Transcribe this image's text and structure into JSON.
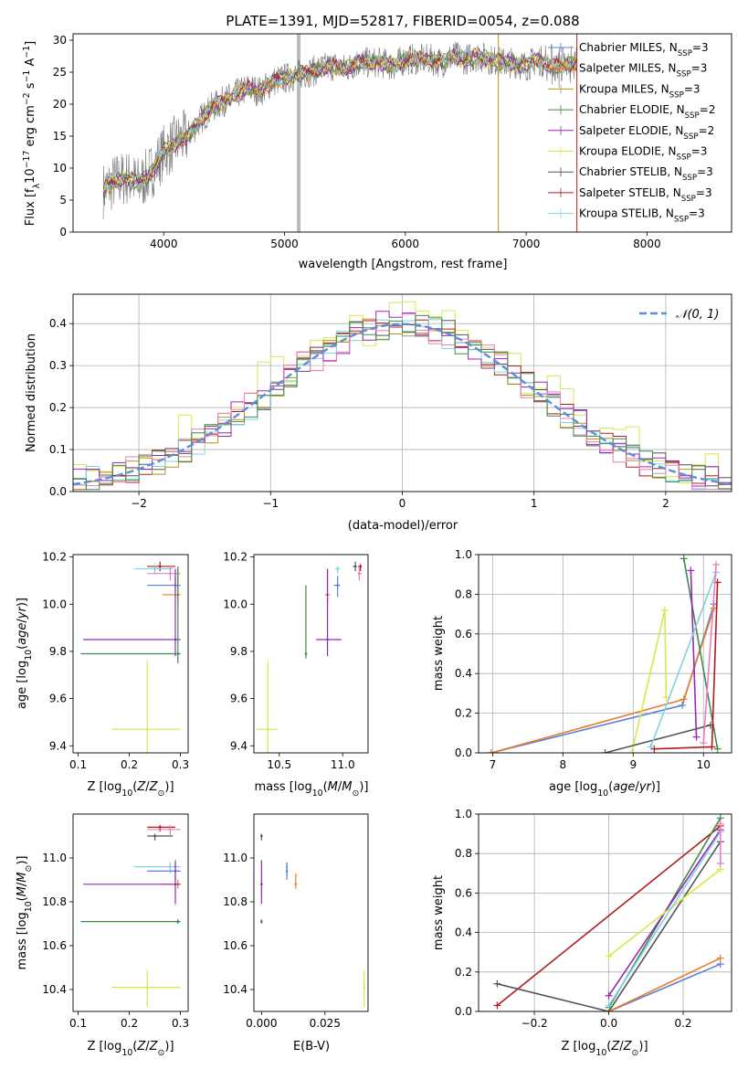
{
  "colors": {
    "chabrier_miles": "#5b7fd6",
    "salpeter_miles": "#e87d2b",
    "kroupa_miles": "#b8921e",
    "chabrier_elodie": "#3f8a4a",
    "salpeter_elodie": "#9b26b6",
    "kroupa_elodie": "#d7e849",
    "chabrier_stelib": "#555555",
    "salpeter_stelib": "#b31b1b",
    "kroupa_stelib": "#7fd3e0",
    "pink": "#e77fc0",
    "normal": "#5b8fd8"
  },
  "chart_data": [
    {
      "id": "spectrum",
      "type": "line",
      "title": "PLATE=1391, MJD=52817, FIBERID=0054, z=0.088",
      "xlabel": "wavelength [Angstrom, rest frame]",
      "ylabel": "Flux [fλ10⁻¹⁷ erg cm⁻² s⁻¹ A⁻¹]",
      "xlim": [
        3250,
        8700
      ],
      "ylim": [
        0,
        31
      ],
      "xticks": [
        4000,
        5000,
        6000,
        7000,
        8000
      ],
      "yticks": [
        0,
        5,
        10,
        15,
        20,
        25,
        30
      ],
      "x": [
        3500,
        3600,
        3700,
        3800,
        3900,
        4000,
        4100,
        4200,
        4300,
        4400,
        4500,
        4600,
        4700,
        4800,
        4900,
        5000,
        5100,
        5200,
        5300,
        5400,
        5500,
        5600,
        5700,
        5800,
        5900,
        6000,
        6100,
        6200,
        6300,
        6400,
        6500,
        6600,
        6700,
        6800,
        6900,
        7000,
        7100,
        7200,
        7300,
        7400
      ],
      "y": [
        6.5,
        8,
        8.5,
        7.5,
        9.5,
        12.5,
        14,
        15,
        17.5,
        19.5,
        20.5,
        21.5,
        22.5,
        22,
        23.5,
        24,
        24.5,
        25,
        25.5,
        26,
        25.5,
        26.5,
        26.5,
        26.5,
        26,
        27,
        27,
        27,
        26.5,
        27.5,
        27,
        27.5,
        27,
        26.5,
        26.5,
        26,
        27,
        26,
        26,
        26.5
      ],
      "legend": [
        {
          "label": "Chabrier MILES, N",
          "sub": "SSP",
          "suffix": "=3",
          "color_key": "chabrier_miles"
        },
        {
          "label": "Salpeter MILES, N",
          "sub": "SSP",
          "suffix": "=3",
          "color_key": "salpeter_miles"
        },
        {
          "label": "Kroupa MILES, N",
          "sub": "SSP",
          "suffix": "=3",
          "color_key": "kroupa_miles"
        },
        {
          "label": "Chabrier ELODIE, N",
          "sub": "SSP",
          "suffix": "=2",
          "color_key": "chabrier_elodie"
        },
        {
          "label": "Salpeter ELODIE, N",
          "sub": "SSP",
          "suffix": "=2",
          "color_key": "salpeter_elodie"
        },
        {
          "label": "Kroupa ELODIE, N",
          "sub": "SSP",
          "suffix": "=3",
          "color_key": "kroupa_elodie"
        },
        {
          "label": "Chabrier STELIB, N",
          "sub": "SSP",
          "suffix": "=3",
          "color_key": "chabrier_stelib"
        },
        {
          "label": "Salpeter STELIB, N",
          "sub": "SSP",
          "suffix": "=3",
          "color_key": "salpeter_stelib"
        },
        {
          "label": "Kroupa STELIB, N",
          "sub": "SSP",
          "suffix": "=3",
          "color_key": "kroupa_stelib"
        }
      ],
      "legend_position": "top-right"
    },
    {
      "id": "residuals",
      "type": "area",
      "xlabel": "(data-model)/error",
      "ylabel": "Normed distribution",
      "xlim": [
        -2.5,
        2.5
      ],
      "ylim": [
        0,
        0.47
      ],
      "xticks": [
        -2,
        -1,
        0,
        1,
        2
      ],
      "yticks": [
        0.0,
        0.1,
        0.2,
        0.3,
        0.4
      ],
      "grid": true,
      "bins": [
        -2.5,
        -2.4,
        -2.3,
        -2.2,
        -2.1,
        -2.0,
        -1.9,
        -1.8,
        -1.7,
        -1.6,
        -1.5,
        -1.4,
        -1.3,
        -1.2,
        -1.1,
        -1.0,
        -0.9,
        -0.8,
        -0.7,
        -0.6,
        -0.5,
        -0.4,
        -0.3,
        -0.2,
        -0.1,
        0.0,
        0.1,
        0.2,
        0.3,
        0.4,
        0.5,
        0.6,
        0.7,
        0.8,
        0.9,
        1.0,
        1.1,
        1.2,
        1.3,
        1.4,
        1.5,
        1.6,
        1.7,
        1.8,
        1.9,
        2.0,
        2.1,
        2.2,
        2.3,
        2.4
      ],
      "normal_label": "𝒩(0, 1)",
      "legend_position": "top-right"
    },
    {
      "id": "age_vs_Z",
      "type": "scatter",
      "xlabel": "Z [log10(Z/Z⊙)]",
      "ylabel": "age  [log10(age/yr)]",
      "xlim": [
        0.09,
        0.315
      ],
      "ylim": [
        9.37,
        10.21
      ],
      "xticks": [
        0.1,
        0.2,
        0.3
      ],
      "yticks": [
        9.4,
        9.6,
        9.8,
        10.0,
        10.2
      ],
      "points": [
        {
          "color_key": "salpeter_stelib",
          "x": 0.26,
          "y": 10.16,
          "xerr": [
            0.235,
            0.29
          ],
          "yerr": [
            10.14,
            10.18
          ]
        },
        {
          "color_key": "kroupa_stelib",
          "x": 0.25,
          "y": 10.15,
          "xerr": [
            0.21,
            0.285
          ],
          "yerr": [
            10.13,
            10.17
          ]
        },
        {
          "color_key": "pink",
          "x": 0.28,
          "y": 10.13,
          "xerr": [
            0.235,
            0.3
          ],
          "yerr": [
            10.1,
            10.16
          ]
        },
        {
          "color_key": "chabrier_miles",
          "x": 0.29,
          "y": 10.08,
          "xerr": [
            0.235,
            0.3
          ],
          "yerr": [
            10.03,
            10.12
          ]
        },
        {
          "color_key": "salpeter_miles",
          "x": 0.295,
          "y": 10.04,
          "xerr": [
            0.265,
            0.3
          ],
          "yerr": [
            10.0,
            10.15
          ]
        },
        {
          "color_key": "salpeter_elodie",
          "x": 0.29,
          "y": 9.85,
          "xerr": [
            0.11,
            0.3
          ],
          "yerr": [
            9.78,
            10.15
          ]
        },
        {
          "color_key": "chabrier_elodie",
          "x": 0.295,
          "y": 9.79,
          "xerr": [
            0.105,
            0.3
          ],
          "yerr": [
            9.75,
            10.16
          ]
        },
        {
          "color_key": "kroupa_elodie",
          "x": 0.235,
          "y": 9.47,
          "xerr": [
            0.165,
            0.3
          ],
          "yerr": [
            9.37,
            9.76
          ]
        }
      ]
    },
    {
      "id": "age_vs_mass",
      "type": "scatter",
      "xlabel": "mass [log10(M/M⊙)]",
      "ylabel": "",
      "xlim": [
        10.3,
        11.2
      ],
      "ylim": [
        9.37,
        10.21
      ],
      "xticks": [
        10.5,
        11.0
      ],
      "yticks": [
        9.4,
        9.6,
        9.8,
        10.0,
        10.2
      ],
      "points": [
        {
          "color_key": "salpeter_stelib",
          "x": 11.14,
          "y": 10.16,
          "xerr": [
            11.12,
            11.15
          ],
          "yerr": [
            10.14,
            10.17
          ]
        },
        {
          "color_key": "chabrier_stelib",
          "x": 11.1,
          "y": 10.16,
          "xerr": [
            11.08,
            11.11
          ],
          "yerr": [
            10.14,
            10.18
          ]
        },
        {
          "color_key": "pink",
          "x": 11.13,
          "y": 10.13,
          "xerr": [
            11.12,
            11.15
          ],
          "yerr": [
            10.1,
            10.16
          ]
        },
        {
          "color_key": "kroupa_stelib",
          "x": 10.96,
          "y": 10.15,
          "xerr": [
            10.94,
            10.98
          ],
          "yerr": [
            10.13,
            10.16
          ]
        },
        {
          "color_key": "chabrier_miles",
          "x": 10.96,
          "y": 10.08,
          "xerr": [
            10.93,
            10.98
          ],
          "yerr": [
            10.03,
            10.12
          ]
        },
        {
          "color_key": "salpeter_miles",
          "x": 10.88,
          "y": 10.04,
          "xerr": [
            10.86,
            10.9
          ],
          "yerr": [
            10.0,
            10.15
          ]
        },
        {
          "color_key": "salpeter_elodie",
          "x": 10.88,
          "y": 9.85,
          "xerr": [
            10.79,
            10.99
          ],
          "yerr": [
            9.78,
            10.15
          ]
        },
        {
          "color_key": "chabrier_elodie",
          "x": 10.71,
          "y": 9.79,
          "xerr": [
            10.7,
            10.72
          ],
          "yerr": [
            9.77,
            10.08
          ]
        },
        {
          "color_key": "kroupa_elodie",
          "x": 10.41,
          "y": 9.47,
          "xerr": [
            10.32,
            10.49
          ],
          "yerr": [
            9.37,
            9.76
          ]
        }
      ]
    },
    {
      "id": "mass_weight_vs_age",
      "type": "line",
      "xlabel": "age  [log10(age/yr)]",
      "ylabel": "mass weight",
      "xlim": [
        6.8,
        10.4
      ],
      "ylim": [
        0,
        1.0
      ],
      "xticks": [
        7,
        8,
        9,
        10
      ],
      "yticks": [
        0.0,
        0.2,
        0.4,
        0.6,
        0.8,
        1.0
      ],
      "grid": true,
      "series": [
        {
          "color_key": "chabrier_miles",
          "x": [
            6.98,
            9.7,
            10.15
          ],
          "y": [
            0.0,
            0.24,
            0.75
          ]
        },
        {
          "color_key": "salpeter_miles",
          "x": [
            6.98,
            9.72,
            10.15
          ],
          "y": [
            0.0,
            0.27,
            0.73
          ]
        },
        {
          "color_key": "chabrier_elodie",
          "x": [
            9.72,
            10.2
          ],
          "y": [
            0.98,
            0.02
          ]
        },
        {
          "color_key": "salpeter_elodie",
          "x": [
            9.82,
            9.9
          ],
          "y": [
            0.92,
            0.08
          ]
        },
        {
          "color_key": "kroupa_elodie",
          "x": [
            8.98,
            9.45,
            9.47
          ],
          "y": [
            0.0,
            0.72,
            0.28
          ]
        },
        {
          "color_key": "chabrier_stelib",
          "x": [
            8.6,
            10.1
          ],
          "y": [
            0.0,
            0.14
          ]
        },
        {
          "color_key": "salpeter_stelib",
          "x": [
            9.3,
            10.12,
            10.2
          ],
          "y": [
            0.02,
            0.03,
            0.86
          ]
        },
        {
          "color_key": "kroupa_stelib",
          "x": [
            9.25,
            10.18
          ],
          "y": [
            0.03,
            0.91
          ]
        },
        {
          "color_key": "pink",
          "x": [
            10.0,
            10.18
          ],
          "y": [
            0.05,
            0.95
          ]
        }
      ]
    },
    {
      "id": "mass_vs_Z",
      "type": "scatter",
      "xlabel": "Z [log10(Z/Z⊙)]",
      "ylabel": "mass [log10(M/M⊙)]",
      "xlim": [
        0.09,
        0.315
      ],
      "ylim": [
        10.3,
        11.2
      ],
      "xticks": [
        0.1,
        0.2,
        0.3
      ],
      "yticks": [
        10.4,
        10.6,
        10.8,
        11.0
      ],
      "points": [
        {
          "color_key": "salpeter_stelib",
          "x": 0.26,
          "y": 11.14,
          "xerr": [
            0.235,
            0.29
          ],
          "yerr": [
            11.12,
            11.15
          ]
        },
        {
          "color_key": "chabrier_stelib",
          "x": 0.25,
          "y": 11.1,
          "xerr": [
            0.235,
            0.285
          ],
          "yerr": [
            11.08,
            11.11
          ]
        },
        {
          "color_key": "pink",
          "x": 0.28,
          "y": 11.13,
          "xerr": [
            0.235,
            0.3
          ],
          "yerr": [
            11.1,
            11.15
          ]
        },
        {
          "color_key": "kroupa_stelib",
          "x": 0.28,
          "y": 10.96,
          "xerr": [
            0.21,
            0.3
          ],
          "yerr": [
            10.93,
            10.98
          ]
        },
        {
          "color_key": "chabrier_miles",
          "x": 0.29,
          "y": 10.94,
          "xerr": [
            0.235,
            0.3
          ],
          "yerr": [
            10.9,
            10.98
          ]
        },
        {
          "color_key": "salpeter_miles",
          "x": 0.295,
          "y": 10.88,
          "xerr": [
            0.265,
            0.3
          ],
          "yerr": [
            10.86,
            10.9
          ]
        },
        {
          "color_key": "salpeter_elodie",
          "x": 0.29,
          "y": 10.88,
          "xerr": [
            0.11,
            0.3
          ],
          "yerr": [
            10.79,
            10.99
          ]
        },
        {
          "color_key": "chabrier_elodie",
          "x": 0.295,
          "y": 10.71,
          "xerr": [
            0.105,
            0.3
          ],
          "yerr": [
            10.7,
            10.72
          ]
        },
        {
          "color_key": "kroupa_elodie",
          "x": 0.235,
          "y": 10.41,
          "xerr": [
            0.165,
            0.3
          ],
          "yerr": [
            10.32,
            10.49
          ]
        }
      ]
    },
    {
      "id": "mass_vs_ebv",
      "type": "scatter",
      "xlabel": "E(B-V)",
      "ylabel": "",
      "xlim": [
        -0.003,
        0.042
      ],
      "ylim": [
        10.3,
        11.2
      ],
      "xticks": [
        0.0,
        0.025
      ],
      "xtick_labels": [
        "0.000",
        "0.025"
      ],
      "yticks": [
        10.4,
        10.6,
        10.8,
        11.0
      ],
      "points": [
        {
          "color_key": "chabrier_stelib",
          "x": 0.0,
          "y": 11.1,
          "yerr": [
            11.08,
            11.11
          ]
        },
        {
          "color_key": "salpeter_elodie",
          "x": 0.0,
          "y": 10.88,
          "yerr": [
            10.79,
            10.99
          ]
        },
        {
          "color_key": "chabrier_elodie",
          "x": 0.0,
          "y": 10.71,
          "yerr": [
            10.7,
            10.72
          ]
        },
        {
          "color_key": "kroupa_stelib",
          "x": 0.01,
          "y": 10.96,
          "yerr": [
            10.93,
            10.98
          ]
        },
        {
          "color_key": "chabrier_miles",
          "x": 0.01,
          "y": 10.94,
          "yerr": [
            10.9,
            10.98
          ]
        },
        {
          "color_key": "salpeter_miles",
          "x": 0.0135,
          "y": 10.88,
          "yerr": [
            10.86,
            10.93
          ]
        },
        {
          "color_key": "kroupa_elodie",
          "x": 0.0405,
          "y": 10.41,
          "yerr": [
            10.32,
            10.49
          ]
        }
      ]
    },
    {
      "id": "mass_weight_vs_Z",
      "type": "line",
      "xlabel": "Z [log10(Z/Z⊙)]",
      "ylabel": "mass weight",
      "xlim": [
        -0.35,
        0.33
      ],
      "ylim": [
        0,
        1.0
      ],
      "xticks": [
        -0.2,
        0.0,
        0.2
      ],
      "yticks": [
        0.0,
        0.2,
        0.4,
        0.6,
        0.8,
        1.0
      ],
      "grid": true,
      "series": [
        {
          "color_key": "salpeter_stelib",
          "x": [
            -0.3,
            0.3
          ],
          "y": [
            0.03,
            0.94
          ]
        },
        {
          "color_key": "chabrier_stelib",
          "x": [
            -0.3,
            0.0,
            0.3
          ],
          "y": [
            0.14,
            0.0,
            0.86
          ]
        },
        {
          "color_key": "chabrier_miles",
          "x": [
            0.0,
            0.3
          ],
          "y": [
            0.0,
            0.24
          ]
        },
        {
          "color_key": "salpeter_miles",
          "x": [
            0.0,
            0.3
          ],
          "y": [
            0.0,
            0.27
          ]
        },
        {
          "color_key": "chabrier_elodie",
          "x": [
            0.0,
            0.3
          ],
          "y": [
            0.02,
            0.98
          ]
        },
        {
          "color_key": "salpeter_elodie",
          "x": [
            0.0,
            0.3
          ],
          "y": [
            0.08,
            0.92
          ]
        },
        {
          "color_key": "kroupa_elodie",
          "x": [
            0.0,
            0.3
          ],
          "y": [
            0.28,
            0.72
          ]
        },
        {
          "color_key": "kroupa_stelib",
          "x": [
            0.0,
            0.3
          ],
          "y": [
            0.03,
            0.91
          ]
        },
        {
          "color_key": "pink",
          "x": [
            0.3,
            0.3
          ],
          "y": [
            0.75,
            0.95
          ]
        }
      ]
    }
  ]
}
